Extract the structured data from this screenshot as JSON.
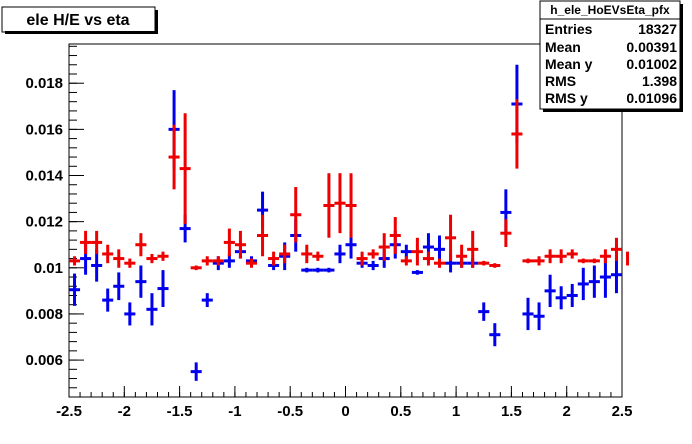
{
  "canvas_title": "ele H/E vs eta",
  "stats_box": {
    "name": "h_ele_HoEVsEta_pfx",
    "rows": [
      {
        "label": "Entries",
        "value": "18327"
      },
      {
        "label": "Mean",
        "value": "0.00391"
      },
      {
        "label": "Mean y",
        "value": "0.01002"
      },
      {
        "label": "RMS",
        "value": "1.398"
      },
      {
        "label": "RMS y",
        "value": "0.01096"
      }
    ]
  },
  "colors": {
    "blue_series": "#0000ee",
    "red_series": "#ee0000",
    "frame": "#000000"
  },
  "chart_data": {
    "type": "scatter",
    "title": "ele H/E vs eta",
    "xlim": [
      -2.5,
      2.5
    ],
    "ylim": [
      0.0044,
      0.0197
    ],
    "x_ticks": [
      "-2.5",
      "-2",
      "-1.5",
      "-1",
      "-0.5",
      "0",
      "0.5",
      "1",
      "1.5",
      "2",
      "2.5"
    ],
    "y_ticks": [
      "0.006",
      "0.008",
      "0.01",
      "0.012",
      "0.014",
      "0.016",
      "0.018"
    ],
    "bin_half_width": 0.05,
    "series": [
      {
        "color": "blue",
        "points": [
          {
            "x": -2.45,
            "y": 0.00905,
            "err": 0.0007
          },
          {
            "x": -2.35,
            "y": 0.0104,
            "err": 0.0007
          },
          {
            "x": -2.25,
            "y": 0.0101,
            "err": 0.0007
          },
          {
            "x": -2.15,
            "y": 0.0086,
            "err": 0.0005
          },
          {
            "x": -2.05,
            "y": 0.0092,
            "err": 0.0006
          },
          {
            "x": -1.95,
            "y": 0.008,
            "err": 0.0005
          },
          {
            "x": -1.85,
            "y": 0.0094,
            "err": 0.0007
          },
          {
            "x": -1.75,
            "y": 0.0082,
            "err": 0.0007
          },
          {
            "x": -1.65,
            "y": 0.0091,
            "err": 0.0008
          },
          {
            "x": -1.55,
            "y": 0.016,
            "err": 0.0017
          },
          {
            "x": -1.45,
            "y": 0.0117,
            "err": 0.0006
          },
          {
            "x": -1.35,
            "y": 0.0055,
            "err": 0.0004
          },
          {
            "x": -1.25,
            "y": 0.0086,
            "err": 0.0003
          },
          {
            "x": -1.15,
            "y": 0.0102,
            "err": 0.0003
          },
          {
            "x": -1.05,
            "y": 0.0103,
            "err": 0.0003
          },
          {
            "x": -0.95,
            "y": 0.0107,
            "err": 0.0003
          },
          {
            "x": -0.85,
            "y": 0.0103,
            "err": 0.0002
          },
          {
            "x": -0.75,
            "y": 0.0125,
            "err": 0.0008
          },
          {
            "x": -0.65,
            "y": 0.0101,
            "err": 0.0002
          },
          {
            "x": -0.55,
            "y": 0.0105,
            "err": 0.0006
          },
          {
            "x": -0.45,
            "y": 0.0114,
            "err": 0.0007
          },
          {
            "x": -0.35,
            "y": 0.0099,
            "err": 0.0001
          },
          {
            "x": -0.25,
            "y": 0.0099,
            "err": 0.0001
          },
          {
            "x": -0.15,
            "y": 0.0099,
            "err": 0.0001
          },
          {
            "x": -0.05,
            "y": 0.0106,
            "err": 0.0004
          },
          {
            "x": 0.05,
            "y": 0.011,
            "err": 0.0006
          },
          {
            "x": 0.15,
            "y": 0.0102,
            "err": 0.0002
          },
          {
            "x": 0.25,
            "y": 0.0101,
            "err": 0.0002
          },
          {
            "x": 0.35,
            "y": 0.0104,
            "err": 0.0004
          },
          {
            "x": 0.45,
            "y": 0.011,
            "err": 0.0006
          },
          {
            "x": 0.55,
            "y": 0.0107,
            "err": 0.0003
          },
          {
            "x": 0.65,
            "y": 0.0098,
            "err": 0.0001
          },
          {
            "x": 0.75,
            "y": 0.0109,
            "err": 0.0006
          },
          {
            "x": 0.85,
            "y": 0.0108,
            "err": 0.0006
          },
          {
            "x": 0.95,
            "y": 0.0102,
            "err": 0.0004
          },
          {
            "x": 1.05,
            "y": 0.0102,
            "err": 0.0002
          },
          {
            "x": 1.15,
            "y": 0.0102,
            "err": 0.0002
          },
          {
            "x": 1.25,
            "y": 0.0081,
            "err": 0.0004
          },
          {
            "x": 1.35,
            "y": 0.0071,
            "err": 0.0005
          },
          {
            "x": 1.45,
            "y": 0.0124,
            "err": 0.001
          },
          {
            "x": 1.55,
            "y": 0.0171,
            "err": 0.0017
          },
          {
            "x": 1.65,
            "y": 0.008,
            "err": 0.0007
          },
          {
            "x": 1.75,
            "y": 0.0079,
            "err": 0.0006
          },
          {
            "x": 1.85,
            "y": 0.009,
            "err": 0.0007
          },
          {
            "x": 1.95,
            "y": 0.0087,
            "err": 0.0005
          },
          {
            "x": 2.05,
            "y": 0.0088,
            "err": 0.0005
          },
          {
            "x": 2.15,
            "y": 0.0093,
            "err": 0.0007
          },
          {
            "x": 2.25,
            "y": 0.0094,
            "err": 0.0007
          },
          {
            "x": 2.35,
            "y": 0.0096,
            "err": 0.0009
          },
          {
            "x": 2.45,
            "y": 0.0097,
            "err": 0.0008
          }
        ]
      },
      {
        "color": "red",
        "points": [
          {
            "x": -2.45,
            "y": 0.0103,
            "err": 0.0002
          },
          {
            "x": -2.35,
            "y": 0.0111,
            "err": 0.0005
          },
          {
            "x": -2.25,
            "y": 0.0111,
            "err": 0.0005
          },
          {
            "x": -2.15,
            "y": 0.0106,
            "err": 0.0004
          },
          {
            "x": -2.05,
            "y": 0.0104,
            "err": 0.0004
          },
          {
            "x": -1.95,
            "y": 0.0102,
            "err": 0.0002
          },
          {
            "x": -1.85,
            "y": 0.011,
            "err": 0.0005
          },
          {
            "x": -1.75,
            "y": 0.0104,
            "err": 0.0002
          },
          {
            "x": -1.65,
            "y": 0.0105,
            "err": 0.0002
          },
          {
            "x": -1.55,
            "y": 0.0148,
            "err": 0.0014
          },
          {
            "x": -1.45,
            "y": 0.0143,
            "err": 0.0024
          },
          {
            "x": -1.35,
            "y": 0.01,
            "err": 0.0001
          },
          {
            "x": -1.25,
            "y": 0.0103,
            "err": 0.0002
          },
          {
            "x": -1.15,
            "y": 0.0103,
            "err": 0.0002
          },
          {
            "x": -1.05,
            "y": 0.0111,
            "err": 0.0006
          },
          {
            "x": -0.95,
            "y": 0.011,
            "err": 0.0006
          },
          {
            "x": -0.85,
            "y": 0.0102,
            "err": 0.0002
          },
          {
            "x": -0.75,
            "y": 0.0114,
            "err": 0.0009
          },
          {
            "x": -0.65,
            "y": 0.0104,
            "err": 0.0003
          },
          {
            "x": -0.55,
            "y": 0.0106,
            "err": 0.0004
          },
          {
            "x": -0.45,
            "y": 0.0123,
            "err": 0.0012
          },
          {
            "x": -0.35,
            "y": 0.0106,
            "err": 0.0004
          },
          {
            "x": -0.25,
            "y": 0.0105,
            "err": 0.0002
          },
          {
            "x": -0.15,
            "y": 0.0127,
            "err": 0.0014
          },
          {
            "x": -0.05,
            "y": 0.0128,
            "err": 0.0013
          },
          {
            "x": 0.05,
            "y": 0.0127,
            "err": 0.0014
          },
          {
            "x": 0.15,
            "y": 0.0104,
            "err": 0.0003
          },
          {
            "x": 0.25,
            "y": 0.0106,
            "err": 0.0002
          },
          {
            "x": 0.35,
            "y": 0.0109,
            "err": 0.0006
          },
          {
            "x": 0.45,
            "y": 0.0114,
            "err": 0.0008
          },
          {
            "x": 0.55,
            "y": 0.0103,
            "err": 0.0002
          },
          {
            "x": 0.65,
            "y": 0.0107,
            "err": 0.0006
          },
          {
            "x": 0.75,
            "y": 0.0104,
            "err": 0.0003
          },
          {
            "x": 0.85,
            "y": 0.0102,
            "err": 0.0002
          },
          {
            "x": 0.95,
            "y": 0.0113,
            "err": 0.001
          },
          {
            "x": 1.05,
            "y": 0.0105,
            "err": 0.0005
          },
          {
            "x": 1.15,
            "y": 0.0108,
            "err": 0.0008
          },
          {
            "x": 1.25,
            "y": 0.0102,
            "err": 0.0001
          },
          {
            "x": 1.35,
            "y": 0.0101,
            "err": 0.0001
          },
          {
            "x": 1.45,
            "y": 0.0115,
            "err": 0.0006
          },
          {
            "x": 1.55,
            "y": 0.0158,
            "err": 0.0015
          },
          {
            "x": 1.65,
            "y": 0.0103,
            "err": 0.0001
          },
          {
            "x": 1.75,
            "y": 0.0103,
            "err": 0.0002
          },
          {
            "x": 1.85,
            "y": 0.0105,
            "err": 0.0003
          },
          {
            "x": 1.95,
            "y": 0.0105,
            "err": 0.0003
          },
          {
            "x": 2.05,
            "y": 0.0106,
            "err": 0.0002
          },
          {
            "x": 2.15,
            "y": 0.0103,
            "err": 0.0001
          },
          {
            "x": 2.25,
            "y": 0.0103,
            "err": 0.0001
          },
          {
            "x": 2.35,
            "y": 0.0105,
            "err": 0.0003
          },
          {
            "x": 2.45,
            "y": 0.0108,
            "err": 0.0005
          },
          {
            "x": 2.55,
            "y": 0.0104,
            "err": 0.0003
          }
        ]
      }
    ]
  }
}
